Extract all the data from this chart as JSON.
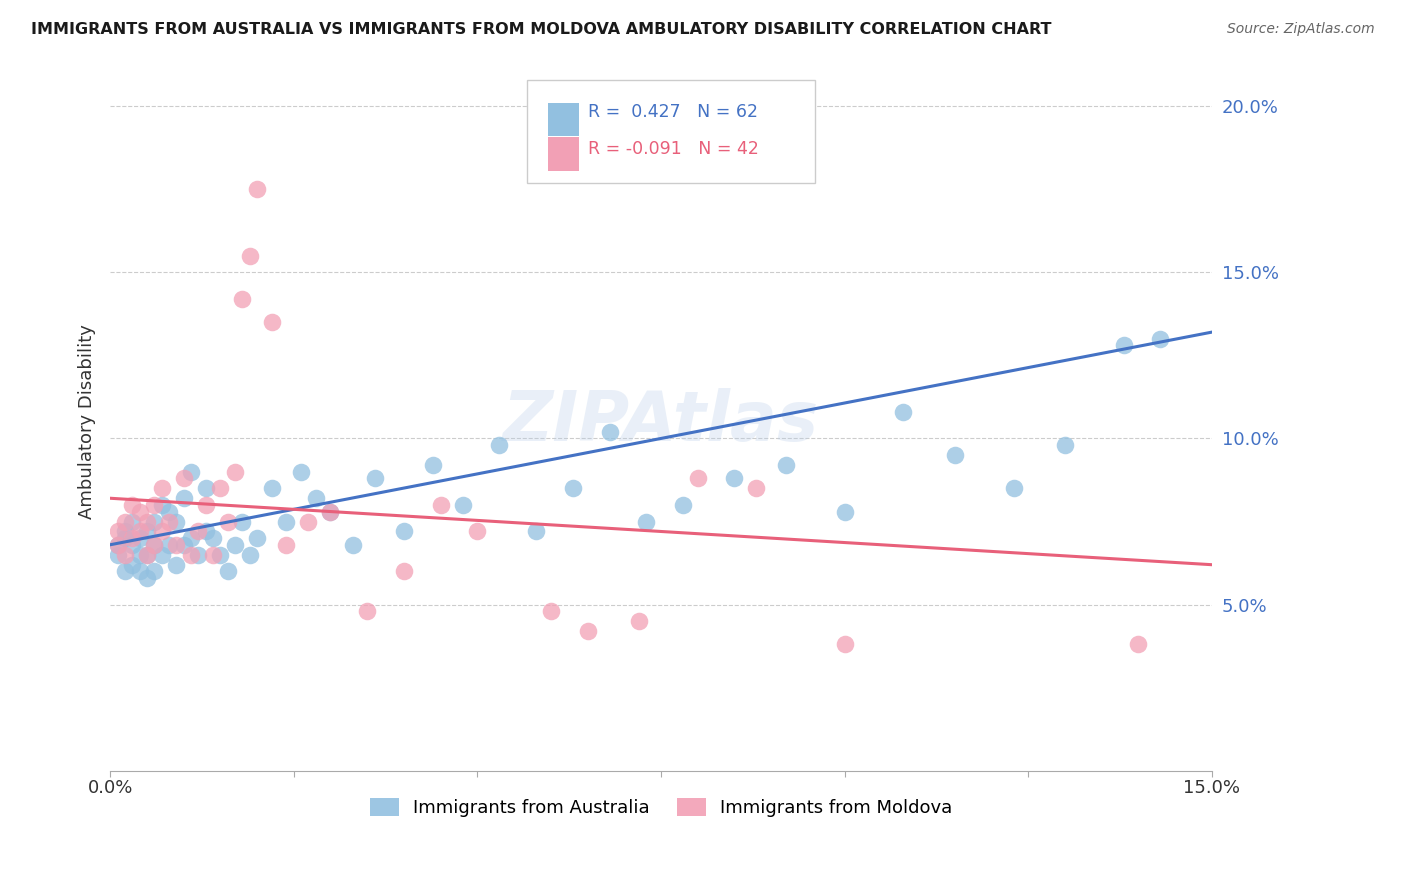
{
  "title": "IMMIGRANTS FROM AUSTRALIA VS IMMIGRANTS FROM MOLDOVA AMBULATORY DISABILITY CORRELATION CHART",
  "source": "Source: ZipAtlas.com",
  "ylabel": "Ambulatory Disability",
  "xlim": [
    0.0,
    0.15
  ],
  "ylim": [
    0.0,
    0.21
  ],
  "yticks": [
    0.05,
    0.1,
    0.15,
    0.2
  ],
  "ytick_labels": [
    "5.0%",
    "10.0%",
    "15.0%",
    "20.0%"
  ],
  "blue_color": "#92C0E0",
  "pink_color": "#F2A0B5",
  "blue_line_color": "#4472C4",
  "pink_line_color": "#E8607A",
  "blue_r": 0.427,
  "blue_n": 62,
  "pink_r": -0.091,
  "pink_n": 42,
  "blue_line_x0": 0.0,
  "blue_line_y0": 0.068,
  "blue_line_x1": 0.15,
  "blue_line_y1": 0.132,
  "pink_line_x0": 0.0,
  "pink_line_y0": 0.082,
  "pink_line_x1": 0.15,
  "pink_line_y1": 0.062,
  "aus_x": [
    0.001,
    0.001,
    0.002,
    0.002,
    0.002,
    0.003,
    0.003,
    0.003,
    0.004,
    0.004,
    0.004,
    0.005,
    0.005,
    0.005,
    0.006,
    0.006,
    0.006,
    0.007,
    0.007,
    0.008,
    0.008,
    0.009,
    0.009,
    0.01,
    0.01,
    0.011,
    0.011,
    0.012,
    0.013,
    0.013,
    0.014,
    0.015,
    0.016,
    0.017,
    0.018,
    0.019,
    0.02,
    0.022,
    0.024,
    0.026,
    0.028,
    0.03,
    0.033,
    0.036,
    0.04,
    0.044,
    0.048,
    0.053,
    0.058,
    0.063,
    0.068,
    0.073,
    0.078,
    0.085,
    0.092,
    0.1,
    0.108,
    0.115,
    0.123,
    0.13,
    0.138,
    0.143
  ],
  "aus_y": [
    0.065,
    0.068,
    0.06,
    0.07,
    0.072,
    0.062,
    0.068,
    0.075,
    0.06,
    0.065,
    0.07,
    0.058,
    0.065,
    0.072,
    0.06,
    0.068,
    0.075,
    0.065,
    0.08,
    0.068,
    0.078,
    0.062,
    0.075,
    0.068,
    0.082,
    0.07,
    0.09,
    0.065,
    0.072,
    0.085,
    0.07,
    0.065,
    0.06,
    0.068,
    0.075,
    0.065,
    0.07,
    0.085,
    0.075,
    0.09,
    0.082,
    0.078,
    0.068,
    0.088,
    0.072,
    0.092,
    0.08,
    0.098,
    0.072,
    0.085,
    0.102,
    0.075,
    0.08,
    0.088,
    0.092,
    0.078,
    0.108,
    0.095,
    0.085,
    0.098,
    0.128,
    0.13
  ],
  "mol_x": [
    0.001,
    0.001,
    0.002,
    0.002,
    0.003,
    0.003,
    0.004,
    0.004,
    0.005,
    0.005,
    0.006,
    0.006,
    0.007,
    0.007,
    0.008,
    0.009,
    0.01,
    0.011,
    0.012,
    0.013,
    0.014,
    0.015,
    0.016,
    0.017,
    0.018,
    0.019,
    0.02,
    0.022,
    0.024,
    0.027,
    0.03,
    0.035,
    0.04,
    0.045,
    0.05,
    0.06,
    0.065,
    0.072,
    0.08,
    0.088,
    0.1,
    0.14
  ],
  "mol_y": [
    0.068,
    0.072,
    0.065,
    0.075,
    0.07,
    0.08,
    0.072,
    0.078,
    0.065,
    0.075,
    0.08,
    0.068,
    0.085,
    0.072,
    0.075,
    0.068,
    0.088,
    0.065,
    0.072,
    0.08,
    0.065,
    0.085,
    0.075,
    0.09,
    0.142,
    0.155,
    0.175,
    0.135,
    0.068,
    0.075,
    0.078,
    0.048,
    0.06,
    0.08,
    0.072,
    0.048,
    0.042,
    0.045,
    0.088,
    0.085,
    0.038,
    0.038
  ]
}
